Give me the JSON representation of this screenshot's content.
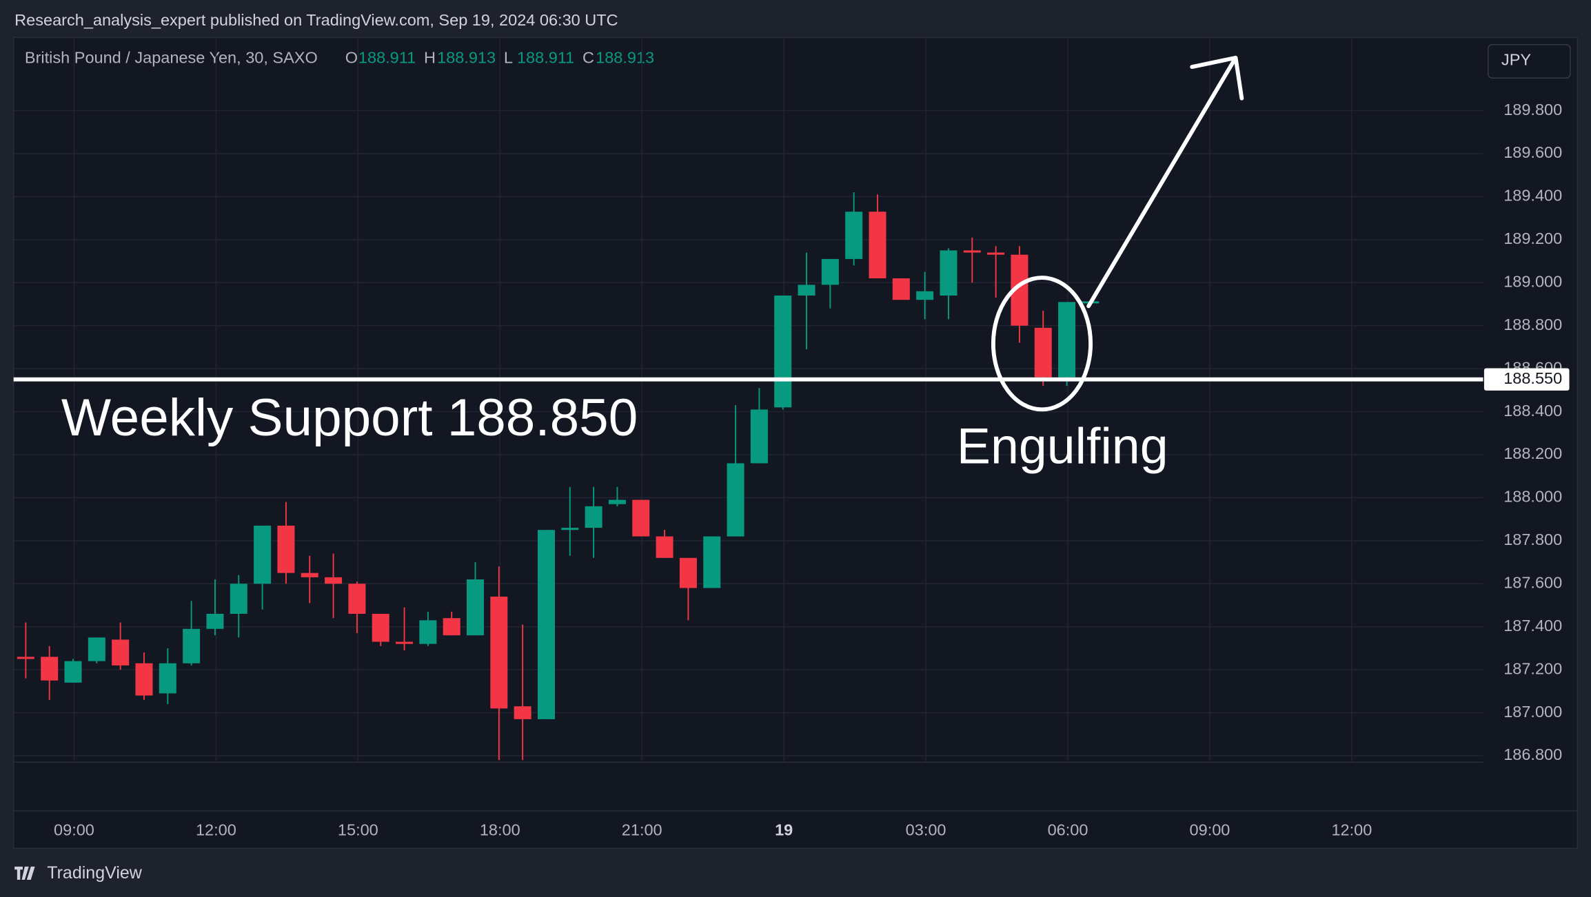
{
  "header": "Research_analysis_expert published on TradingView.com, Sep 19, 2024 06:30 UTC",
  "footer": "TradingView",
  "currency": "JPY",
  "chart_data": {
    "type": "candlestick",
    "title": "British Pound / Japanese Yen, 30, SAXO",
    "ohlc_legend": [
      {
        "label": "O",
        "value": 188.911
      },
      {
        "label": "H",
        "value": 188.913
      },
      {
        "label": "L",
        "value": 188.911
      },
      {
        "label": "C",
        "value": 188.913
      }
    ],
    "open": [
      187.26,
      187.26,
      187.14,
      187.24,
      187.34,
      187.23,
      187.09,
      187.23,
      187.39,
      187.46,
      187.6,
      187.87,
      187.65,
      187.63,
      187.6,
      187.46,
      187.33,
      187.32,
      187.44,
      187.36,
      187.54,
      187.03,
      186.97,
      187.85,
      187.86,
      187.97,
      187.99,
      187.82,
      187.72,
      187.58,
      187.82,
      188.16,
      188.42,
      188.94,
      188.99,
      189.11,
      189.33,
      189.02,
      188.92,
      188.94,
      189.15,
      189.14,
      189.13,
      188.79,
      188.56,
      188.911
    ],
    "high": [
      187.42,
      187.31,
      187.25,
      187.35,
      187.42,
      187.28,
      187.3,
      187.52,
      187.62,
      187.64,
      187.87,
      187.98,
      187.73,
      187.74,
      187.61,
      187.46,
      187.49,
      187.47,
      187.47,
      187.7,
      187.68,
      187.41,
      187.85,
      188.05,
      188.05,
      188.05,
      187.99,
      187.85,
      187.72,
      187.82,
      188.43,
      188.51,
      188.94,
      189.14,
      189.11,
      189.42,
      189.41,
      189.02,
      189.05,
      189.16,
      189.21,
      189.17,
      189.17,
      188.87,
      188.91,
      188.913
    ],
    "low": [
      187.16,
      187.06,
      187.14,
      187.23,
      187.2,
      187.06,
      187.04,
      187.22,
      187.36,
      187.35,
      187.48,
      187.6,
      187.51,
      187.44,
      187.37,
      187.31,
      187.29,
      187.31,
      187.36,
      187.36,
      186.78,
      186.78,
      186.97,
      187.73,
      187.72,
      187.96,
      187.82,
      187.72,
      187.43,
      187.58,
      187.82,
      188.16,
      188.41,
      188.69,
      188.88,
      189.08,
      189.02,
      188.92,
      188.83,
      188.83,
      189.0,
      188.93,
      188.72,
      188.52,
      188.52,
      188.911
    ],
    "close": [
      187.25,
      187.15,
      187.24,
      187.35,
      187.22,
      187.08,
      187.23,
      187.39,
      187.46,
      187.6,
      187.87,
      187.65,
      187.63,
      187.6,
      187.46,
      187.33,
      187.32,
      187.43,
      187.36,
      187.62,
      187.02,
      186.97,
      187.85,
      187.86,
      187.96,
      187.99,
      187.82,
      187.72,
      187.58,
      187.82,
      188.16,
      188.41,
      188.94,
      188.99,
      189.11,
      189.33,
      189.02,
      188.92,
      188.96,
      189.15,
      189.14,
      189.13,
      188.8,
      188.56,
      188.91,
      188.913
    ],
    "up_color": "#089981",
    "down_color": "#f23645",
    "ylim": [
      186.77,
      190.14
    ],
    "yticks": [
      {
        "value": 186.8,
        "label": "186.800"
      },
      {
        "value": 187.0,
        "label": "187.000"
      },
      {
        "value": 187.2,
        "label": "187.200"
      },
      {
        "value": 187.4,
        "label": "187.400"
      },
      {
        "value": 187.6,
        "label": "187.600"
      },
      {
        "value": 187.8,
        "label": "187.800"
      },
      {
        "value": 188.0,
        "label": "188.000"
      },
      {
        "value": 188.2,
        "label": "188.200"
      },
      {
        "value": 188.4,
        "label": "188.400"
      },
      {
        "value": 188.6,
        "label": "188.600"
      },
      {
        "value": 188.8,
        "label": "188.800"
      },
      {
        "value": 189.0,
        "label": "189.000"
      },
      {
        "value": 189.2,
        "label": "189.200"
      },
      {
        "value": 189.4,
        "label": "189.400"
      },
      {
        "value": 189.6,
        "label": "189.600"
      },
      {
        "value": 189.8,
        "label": "189.800"
      }
    ],
    "x_labels": [
      "09:00",
      "12:00",
      "15:00",
      "18:00",
      "21:00",
      "19",
      "03:00",
      "06:00",
      "09:00",
      "12:00"
    ],
    "grid": true,
    "hline": {
      "value": 188.55,
      "label": "188.550"
    },
    "annotations": [
      "Weekly Support 188.850",
      "Engulfing"
    ]
  }
}
